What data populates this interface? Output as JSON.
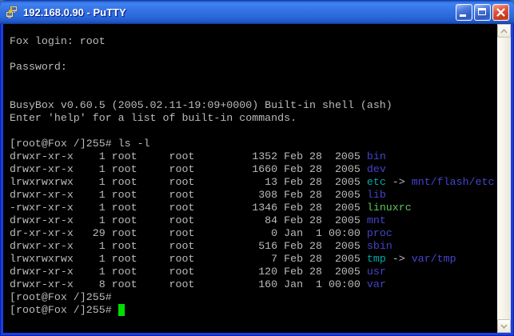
{
  "window": {
    "title": "192.168.0.90 - PuTTY",
    "controls": {
      "minimize": "Minimize",
      "maximize": "Maximize",
      "close": "Close"
    }
  },
  "colors": {
    "background": "#000000",
    "foreground": "#BBBBBB",
    "directory": "#4444CC",
    "symlink": "#00AAAA",
    "executable": "#5CC65C",
    "cursor": "#00DE00",
    "border-blue": "#1C3EE0"
  },
  "terminal": {
    "lines": [
      [
        {
          "t": "Fox login: root",
          "c": "fg"
        }
      ],
      [],
      [
        {
          "t": "Password:",
          "c": "fg"
        }
      ],
      [],
      [],
      [
        {
          "t": "BusyBox v0.60.5 (2005.02.11-19:09+0000) Built-in shell (ash)",
          "c": "fg"
        }
      ],
      [
        {
          "t": "Enter 'help' for a list of built-in commands.",
          "c": "fg"
        }
      ],
      [],
      [
        {
          "t": "[root@Fox /]255# ls -l",
          "c": "fg"
        }
      ],
      [
        {
          "t": "drwxr-xr-x    1 root     root         1352 Feb 28  2005 ",
          "c": "fg"
        },
        {
          "t": "bin",
          "c": "dir"
        }
      ],
      [
        {
          "t": "drwxr-xr-x    1 root     root         1660 Feb 28  2005 ",
          "c": "fg"
        },
        {
          "t": "dev",
          "c": "dir"
        }
      ],
      [
        {
          "t": "lrwxrwxrwx    1 root     root           13 Feb 28  2005 ",
          "c": "fg"
        },
        {
          "t": "etc",
          "c": "ln"
        },
        {
          "t": " -> ",
          "c": "fg"
        },
        {
          "t": "mnt/flash/etc",
          "c": "dir"
        }
      ],
      [
        {
          "t": "drwxr-xr-x    1 root     root          308 Feb 28  2005 ",
          "c": "fg"
        },
        {
          "t": "lib",
          "c": "dir"
        }
      ],
      [
        {
          "t": "-rwxr-xr-x    1 root     root         1346 Feb 28  2005 ",
          "c": "fg"
        },
        {
          "t": "linuxrc",
          "c": "ex"
        }
      ],
      [
        {
          "t": "drwxr-xr-x    1 root     root           84 Feb 28  2005 ",
          "c": "fg"
        },
        {
          "t": "mnt",
          "c": "dir"
        }
      ],
      [
        {
          "t": "dr-xr-xr-x   29 root     root            0 Jan  1 00:00 ",
          "c": "fg"
        },
        {
          "t": "proc",
          "c": "dir"
        }
      ],
      [
        {
          "t": "drwxr-xr-x    1 root     root          516 Feb 28  2005 ",
          "c": "fg"
        },
        {
          "t": "sbin",
          "c": "dir"
        }
      ],
      [
        {
          "t": "lrwxrwxrwx    1 root     root            7 Feb 28  2005 ",
          "c": "fg"
        },
        {
          "t": "tmp",
          "c": "ln"
        },
        {
          "t": " -> ",
          "c": "fg"
        },
        {
          "t": "var/tmp",
          "c": "dir"
        }
      ],
      [
        {
          "t": "drwxr-xr-x    1 root     root          120 Feb 28  2005 ",
          "c": "fg"
        },
        {
          "t": "usr",
          "c": "dir"
        }
      ],
      [
        {
          "t": "drwxr-xr-x    8 root     root          160 Jan  1 00:00 ",
          "c": "fg"
        },
        {
          "t": "var",
          "c": "dir"
        }
      ],
      [
        {
          "t": "[root@Fox /]255#",
          "c": "fg"
        }
      ],
      [
        {
          "t": "[root@Fox /]255# ",
          "c": "fg"
        },
        {
          "t": " ",
          "c": "cur"
        }
      ]
    ]
  }
}
